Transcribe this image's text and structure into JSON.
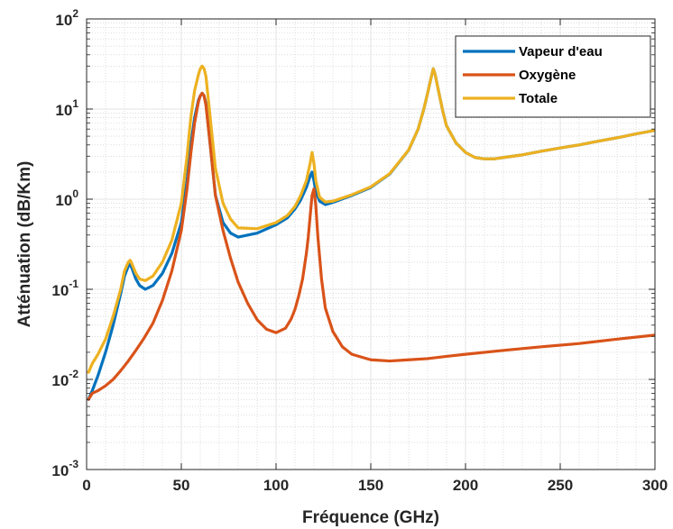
{
  "chart_data": {
    "type": "line",
    "title": "",
    "xlabel": "Fréquence (GHz)",
    "ylabel": "Atténuation (dB/Km)",
    "xlim": [
      0,
      300
    ],
    "ylim": [
      0.001,
      100
    ],
    "yscale": "log",
    "grid": true,
    "minor_grid": true,
    "legend_position": "top-right",
    "x_ticks": [
      0,
      50,
      100,
      150,
      200,
      250,
      300
    ],
    "x_tick_labels": [
      "0",
      "50",
      "100",
      "150",
      "200",
      "250",
      "300"
    ],
    "y_tick_labels": [
      {
        "base": "10",
        "exp": "-3"
      },
      {
        "base": "10",
        "exp": "-2"
      },
      {
        "base": "10",
        "exp": "-1"
      },
      {
        "base": "10",
        "exp": "0"
      },
      {
        "base": "10",
        "exp": "1"
      },
      {
        "base": "10",
        "exp": "2"
      }
    ],
    "series": [
      {
        "name": "Vapeur d'eau",
        "color": "#0072BD",
        "x": [
          1,
          3,
          6,
          10,
          14,
          18,
          20,
          22,
          23,
          24,
          26,
          28,
          31,
          35,
          40,
          45,
          50,
          53,
          55,
          57,
          59,
          60,
          61,
          62,
          63,
          65,
          68,
          72,
          76,
          80,
          90,
          100,
          106,
          110,
          113,
          116,
          118,
          119,
          120,
          121,
          123,
          126,
          130,
          140,
          150,
          160,
          170,
          175,
          178,
          180,
          182,
          183,
          184,
          186,
          188,
          190,
          195,
          200,
          205,
          210,
          215,
          220,
          230,
          240,
          250,
          260,
          270,
          280,
          290,
          300
        ],
        "y": [
          0.006,
          0.0075,
          0.011,
          0.02,
          0.04,
          0.09,
          0.14,
          0.18,
          0.19,
          0.17,
          0.13,
          0.11,
          0.1,
          0.11,
          0.15,
          0.25,
          0.55,
          1.6,
          4,
          8,
          12.5,
          14,
          15,
          14,
          11.5,
          4.5,
          1.1,
          0.55,
          0.42,
          0.38,
          0.42,
          0.52,
          0.62,
          0.78,
          0.98,
          1.35,
          1.8,
          2.0,
          1.6,
          1.2,
          0.95,
          0.87,
          0.92,
          1.1,
          1.35,
          1.9,
          3.5,
          6,
          10,
          15,
          23,
          28,
          24,
          15,
          9.5,
          6.5,
          4.2,
          3.3,
          2.9,
          2.8,
          2.8,
          2.9,
          3.1,
          3.4,
          3.7,
          4.0,
          4.4,
          4.8,
          5.3,
          5.8
        ]
      },
      {
        "name": "Oxygène",
        "color": "#D95319",
        "x": [
          1,
          3,
          6,
          10,
          14,
          18,
          22,
          26,
          30,
          35,
          40,
          45,
          50,
          53,
          55,
          57,
          59,
          60,
          61,
          62,
          63,
          65,
          68,
          72,
          76,
          80,
          85,
          90,
          95,
          100,
          105,
          108,
          110,
          112,
          114,
          116,
          117,
          118,
          119,
          120,
          121,
          122,
          124,
          126,
          130,
          135,
          140,
          150,
          160,
          170,
          180,
          190,
          200,
          220,
          240,
          260,
          280,
          300
        ],
        "y": [
          0.006,
          0.007,
          0.0075,
          0.0085,
          0.01,
          0.0125,
          0.016,
          0.021,
          0.028,
          0.042,
          0.075,
          0.16,
          0.45,
          1.3,
          3.2,
          7,
          12,
          14,
          15,
          14,
          11,
          4.5,
          1.1,
          0.45,
          0.22,
          0.12,
          0.07,
          0.046,
          0.036,
          0.033,
          0.037,
          0.047,
          0.06,
          0.085,
          0.13,
          0.25,
          0.38,
          0.65,
          1.1,
          1.3,
          0.85,
          0.4,
          0.13,
          0.062,
          0.034,
          0.023,
          0.019,
          0.0165,
          0.016,
          0.0165,
          0.017,
          0.018,
          0.019,
          0.021,
          0.023,
          0.025,
          0.028,
          0.031
        ]
      },
      {
        "name": "Totale",
        "color": "#EDB120",
        "x": [
          1,
          3,
          6,
          10,
          14,
          18,
          20,
          22,
          23,
          24,
          26,
          28,
          31,
          35,
          40,
          45,
          50,
          53,
          55,
          57,
          59,
          60,
          61,
          62,
          63,
          65,
          68,
          72,
          76,
          80,
          90,
          100,
          106,
          110,
          113,
          116,
          118,
          119,
          120,
          121,
          123,
          126,
          130,
          140,
          150,
          160,
          170,
          175,
          178,
          180,
          182,
          183,
          184,
          186,
          188,
          190,
          195,
          200,
          205,
          210,
          215,
          220,
          230,
          240,
          250,
          260,
          270,
          280,
          290,
          300
        ],
        "y": [
          0.012,
          0.015,
          0.019,
          0.028,
          0.05,
          0.1,
          0.16,
          0.2,
          0.21,
          0.19,
          0.15,
          0.13,
          0.125,
          0.14,
          0.2,
          0.35,
          0.9,
          3,
          8,
          16,
          24,
          28,
          30,
          28,
          23,
          9,
          2.2,
          0.9,
          0.6,
          0.48,
          0.47,
          0.55,
          0.66,
          0.83,
          1.1,
          1.6,
          2.5,
          3.3,
          2.5,
          1.6,
          1.05,
          0.93,
          0.95,
          1.12,
          1.37,
          1.92,
          3.52,
          6,
          10,
          15,
          23,
          28,
          24,
          15,
          9.5,
          6.5,
          4.2,
          3.3,
          2.9,
          2.8,
          2.8,
          2.9,
          3.1,
          3.4,
          3.7,
          4.0,
          4.4,
          4.8,
          5.3,
          5.8
        ]
      }
    ]
  }
}
